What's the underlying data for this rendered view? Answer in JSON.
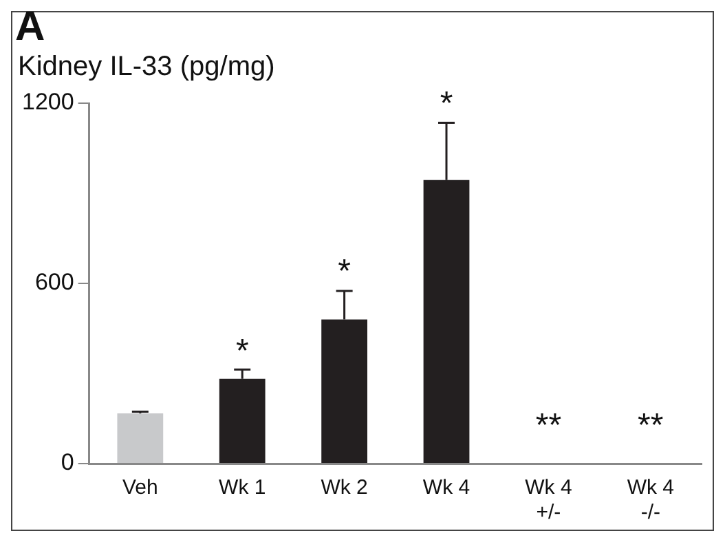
{
  "chart_data": {
    "type": "bar",
    "title": "Kidney IL-33 (pg/mg)",
    "categories": [
      "Veh",
      "Wk 1",
      "Wk 2",
      "Wk 4",
      "Wk 4\n+/-",
      "Wk 4\n-/-"
    ],
    "values": [
      167,
      282,
      480,
      944,
      0,
      0
    ],
    "colors": [
      "#c8c9cb",
      "#231f20",
      "#231f20",
      "#231f20",
      "#231f20",
      "#231f20"
    ],
    "errors": [
      [
        167,
        173
      ],
      [
        282,
        313
      ],
      [
        480,
        575
      ],
      [
        944,
        1135
      ],
      null,
      null
    ],
    "ylim": [
      0,
      1200
    ],
    "yticks": [
      0,
      600,
      1200
    ],
    "grid": false,
    "legend": false,
    "annotations": [
      "A",
      "*",
      "*",
      "*",
      "**",
      "**"
    ]
  }
}
